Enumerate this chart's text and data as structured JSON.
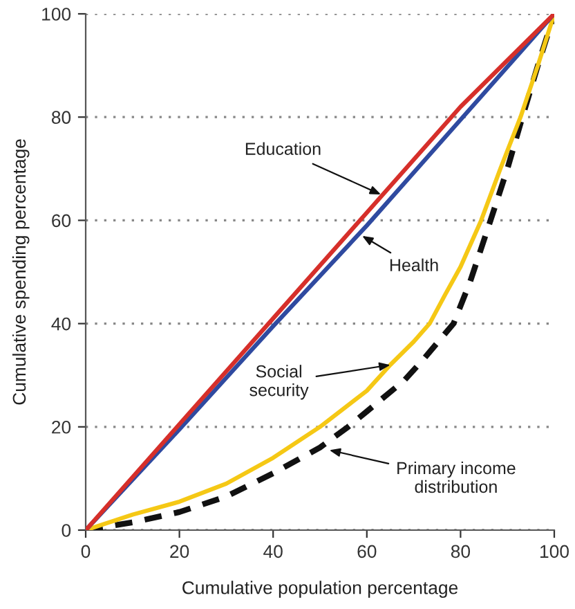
{
  "chart_data": {
    "type": "line",
    "xlabel": "Cumulative population percentage",
    "ylabel": "Cumulative spending percentage",
    "xlim": [
      0,
      100
    ],
    "ylim": [
      0,
      100
    ],
    "xticks": [
      0,
      20,
      40,
      60,
      80,
      100
    ],
    "yticks": [
      0,
      20,
      40,
      60,
      80,
      100
    ],
    "grid": "y",
    "legend": false,
    "annotations": [
      {
        "text": "Education",
        "x": 63,
        "y": 65
      },
      {
        "text": "Health",
        "x": 59,
        "y": 57
      },
      {
        "text": "Social\nsecurity",
        "x": 65,
        "y": 32
      },
      {
        "text": "Primary income\ndistribution",
        "x": 52,
        "y": 15.5
      }
    ],
    "series": [
      {
        "color": "#d62f2a",
        "line_style": "solid",
        "x": [
          0,
          20,
          40,
          60,
          80,
          100
        ],
        "values": [
          0,
          20.5,
          41,
          61.5,
          82,
          100
        ]
      },
      {
        "color": "#2f4aa0",
        "line_style": "solid",
        "x": [
          0,
          20,
          40,
          60,
          80,
          100
        ],
        "values": [
          0,
          19.5,
          39.5,
          59,
          79.5,
          100
        ]
      },
      {
        "color": "#f5c815",
        "line_style": "solid",
        "x": [
          0,
          10,
          20,
          30,
          40,
          50,
          60,
          65,
          70,
          73.4,
          76.7,
          80,
          84.4,
          88.5,
          92.8,
          96.5,
          100
        ],
        "values": [
          0,
          3,
          5.5,
          9,
          14,
          20,
          27,
          32,
          36.5,
          40,
          45.6,
          51,
          60,
          70,
          80,
          90,
          100
        ]
      },
      {
        "color": "#111111",
        "line_style": "dashed",
        "x": [
          0,
          10,
          20,
          30,
          40,
          50,
          56,
          60,
          68,
          72,
          78.5,
          82,
          86.4,
          90,
          93.2,
          96.5,
          100
        ],
        "values": [
          0,
          1.5,
          3.5,
          6.5,
          11,
          16,
          20,
          23,
          29,
          33,
          40,
          48,
          60,
          70,
          80,
          90,
          100
        ]
      }
    ]
  }
}
